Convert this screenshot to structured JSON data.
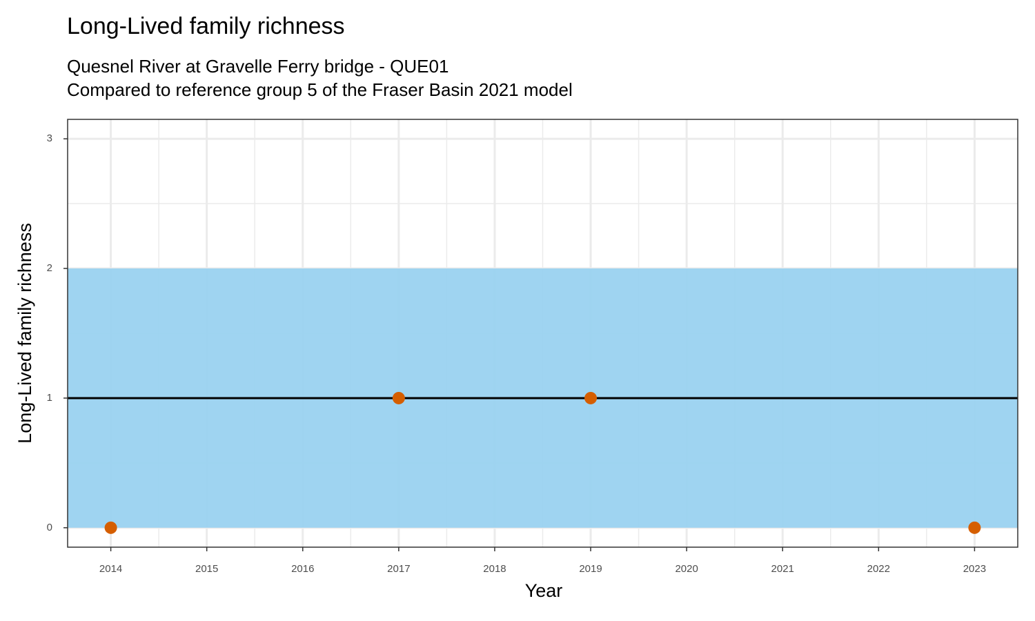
{
  "chart_data": {
    "type": "scatter",
    "title": "Long-Lived family richness",
    "subtitle": [
      "Quesnel River at Gravelle Ferry bridge - QUE01",
      "Compared to reference group 5 of the Fraser Basin 2021 model"
    ],
    "x_label": "Year",
    "y_label": "Long-Lived family richness",
    "x": [
      2014,
      2017,
      2019,
      2023
    ],
    "values": [
      0,
      1,
      1,
      0
    ],
    "color": "#D55E00",
    "band": {
      "lower": 0,
      "upper": 2,
      "color": "#9AD2F0"
    },
    "reference_line": {
      "value": 1,
      "color": "#000000"
    },
    "xlim": [
      2013.55,
      2023.45
    ],
    "xticks": [
      2014,
      2015,
      2016,
      2017,
      2018,
      2019,
      2020,
      2021,
      2022,
      2023
    ],
    "ylim": [
      -0.15,
      3.15
    ],
    "yticks": [
      0,
      1,
      2,
      3
    ],
    "grid": true
  }
}
